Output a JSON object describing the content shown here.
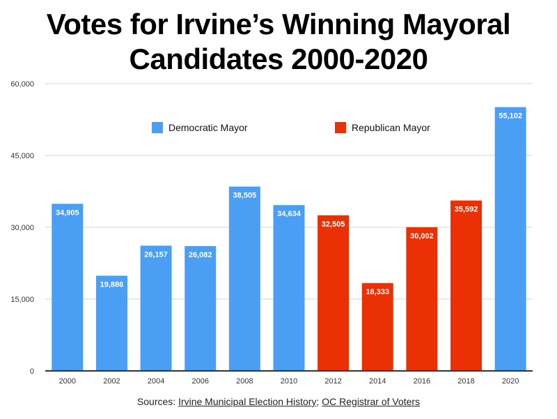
{
  "chart_data": {
    "type": "bar",
    "title_lines": [
      "Votes for Irvine’s Winning Mayoral",
      "Candidates 2000-2020"
    ],
    "categories": [
      "2000",
      "2002",
      "2004",
      "2006",
      "2008",
      "2010",
      "2012",
      "2014",
      "2016",
      "2018",
      "2020"
    ],
    "values": [
      34905,
      19886,
      26157,
      26082,
      38505,
      34634,
      32505,
      18333,
      30002,
      35592,
      55102
    ],
    "value_labels": [
      "34,905",
      "19,886",
      "26,157",
      "26,082",
      "38,505",
      "34,634",
      "32,505",
      "18,333",
      "30,002",
      "35,592",
      "55,102"
    ],
    "party": [
      "Democratic",
      "Democratic",
      "Democratic",
      "Democratic",
      "Democratic",
      "Democratic",
      "Republican",
      "Republican",
      "Republican",
      "Republican",
      "Democratic"
    ],
    "series": [
      {
        "name": "Democratic Mayor",
        "key": "Democratic",
        "color": "#4a9ff5"
      },
      {
        "name": "Republican Mayor",
        "key": "Republican",
        "color": "#ec3005"
      }
    ],
    "xlabel": "",
    "ylabel": "",
    "ylim": [
      0,
      60000
    ],
    "yticks": [
      0,
      15000,
      30000,
      45000,
      60000
    ],
    "ytick_labels": [
      "0",
      "15,000",
      "30,000",
      "45,000",
      "60,000"
    ],
    "grid": true,
    "legend_position": "top-center"
  },
  "footer": {
    "prefix": "Sources: ",
    "link1": "Irvine Municipal Election History",
    "separator": "; ",
    "link2": "OC Registrar of Voters"
  }
}
